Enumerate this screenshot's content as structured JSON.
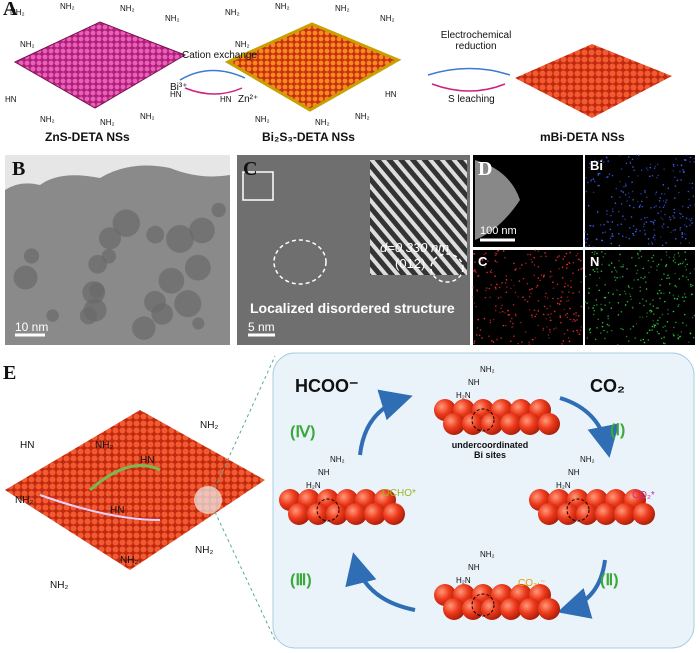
{
  "panel_labels": {
    "a": "A",
    "b": "B",
    "c": "C",
    "d": "D",
    "e": "E"
  },
  "panel_a": {
    "step1": "Cation exchange",
    "ion_in": "Bi³⁺",
    "ion_out": "Zn²⁺",
    "step2": "Electrochemical reduction",
    "step2_note": "S leaching",
    "materials": [
      "ZnS-DETA NSs",
      "Bi₂S₃-DETA NSs",
      "mBi-DETA NSs"
    ],
    "ligand_labels": [
      "NH₂",
      "NH₂",
      "NH₂",
      "NH₂",
      "HN",
      "HN",
      "NH₂",
      "NH₂",
      "NH₂",
      "NH₂"
    ]
  },
  "panel_b": {
    "scale_bar": "10 nm"
  },
  "panel_c": {
    "d_spacing": "d=0.330 nm",
    "plane": "(012)",
    "annotation": "Localized disordered structure",
    "scale_bar": "5 nm"
  },
  "panel_d": {
    "scale_bar": "100 nm",
    "maps": [
      "Bi",
      "C",
      "N"
    ]
  },
  "panel_e": {
    "product": "HCOO⁻",
    "reactant": "CO₂",
    "steps": [
      "(Ⅰ)",
      "(Ⅱ)",
      "(Ⅲ)",
      "(Ⅳ)"
    ],
    "site_note": "undercoordinated Bi sites",
    "intermediates": [
      "CO₂*",
      "CO₂·⁻",
      "OCHO*"
    ],
    "ligand_labels": [
      "NH₂",
      "HN",
      "NH₂",
      "HN",
      "NH₂",
      "HN",
      "NH₂",
      "NH₂",
      "NH₂"
    ],
    "cycle_ligand_labels": [
      "NH₂",
      "NH",
      "H₂N"
    ]
  }
}
